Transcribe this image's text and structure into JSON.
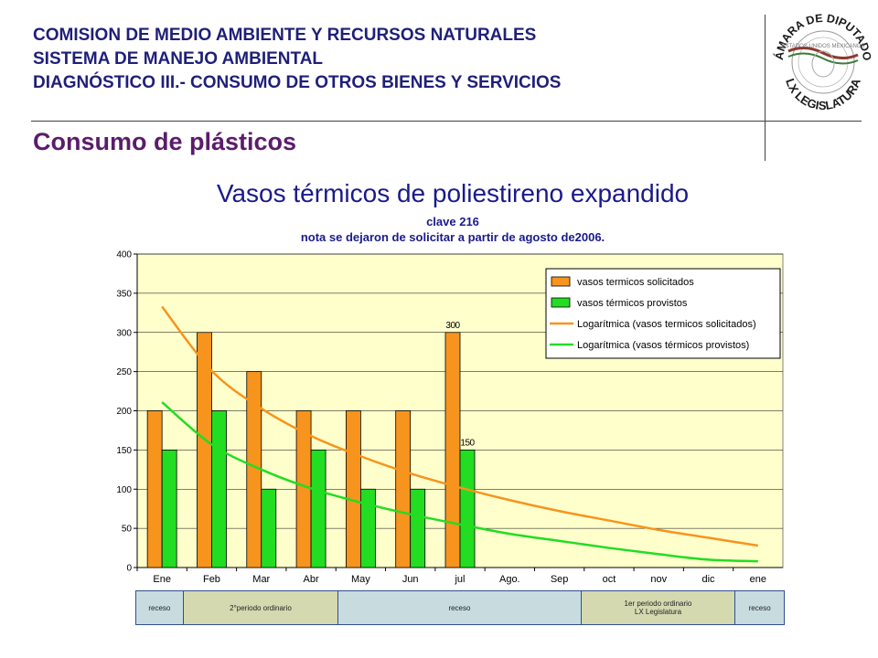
{
  "header": {
    "line1": "COMISION DE MEDIO AMBIENTE Y RECURSOS NATURALES",
    "line2": "SISTEMA DE MANEJO AMBIENTAL",
    "line3": "DIAGNÓSTICO  III.- CONSUMO DE OTROS BIENES Y SERVICIOS",
    "subtitle": "Consumo de plásticos"
  },
  "seal": {
    "top_text": "CÁMARA DE DIPUTADOS",
    "bottom_text": "LX LEGISLATURA",
    "inner_text": "ESTADOS UNIDOS MEXICANOS"
  },
  "chart_data": {
    "type": "bar",
    "title": "Vasos térmicos de poliestireno expandido",
    "subtitle_lines": [
      "clave 216",
      "nota se dejaron de solicitar a partir de agosto de2006."
    ],
    "categories": [
      "Ene",
      "Feb",
      "Mar",
      "Abr",
      "May",
      "Jun",
      "jul",
      "Ago.",
      "Sep",
      "oct",
      "nov",
      "dic",
      "ene"
    ],
    "series": [
      {
        "name": "vasos termicos solicitados",
        "type": "bar",
        "color": "#f7941d",
        "values": [
          200,
          300,
          250,
          200,
          200,
          200,
          300,
          null,
          null,
          null,
          null,
          null,
          null
        ]
      },
      {
        "name": "vasos térmicos provistos",
        "type": "bar",
        "color": "#22dd22",
        "values": [
          150,
          200,
          100,
          150,
          100,
          100,
          150,
          null,
          null,
          null,
          null,
          null,
          null
        ]
      },
      {
        "name": "Logarítmica (vasos termicos solicitados)",
        "type": "line",
        "color": "#f7941d",
        "values": [
          333,
          251,
          203,
          168,
          142,
          120,
          102,
          86,
          72,
          60,
          48,
          38,
          28
        ]
      },
      {
        "name": "Logarítmica (vasos térmicos provistos)",
        "type": "line",
        "color": "#22dd22",
        "values": [
          211,
          157,
          125,
          101,
          83,
          68,
          55,
          43,
          34,
          25,
          17,
          10,
          8
        ]
      }
    ],
    "data_labels": [
      {
        "category": "jul",
        "series": 0,
        "text": "300"
      },
      {
        "category": "jul",
        "series": 1,
        "text": "150"
      }
    ],
    "ylim": [
      0,
      400
    ],
    "yticks": [
      0,
      50,
      100,
      150,
      200,
      250,
      300,
      350,
      400
    ],
    "grid": true,
    "legend_position": "top-right",
    "colors": {
      "plot_bg": "#ffffcc",
      "grid": "#000000",
      "axis_text": "#000000"
    }
  },
  "periods": {
    "cells": [
      {
        "line1": "",
        "line2": "receso",
        "color": "#c8dce0"
      },
      {
        "line1": "",
        "line2": "2°periodo ordinario",
        "color": "#d4d9b0"
      },
      {
        "line1": "",
        "line2": "receso",
        "color": "#c8dce0"
      },
      {
        "line1": "1er periodo ordinario",
        "line2": "LX Legislatura",
        "color": "#d4d9b0"
      },
      {
        "line1": "",
        "line2": "receso",
        "color": "#c8dce0"
      }
    ]
  }
}
